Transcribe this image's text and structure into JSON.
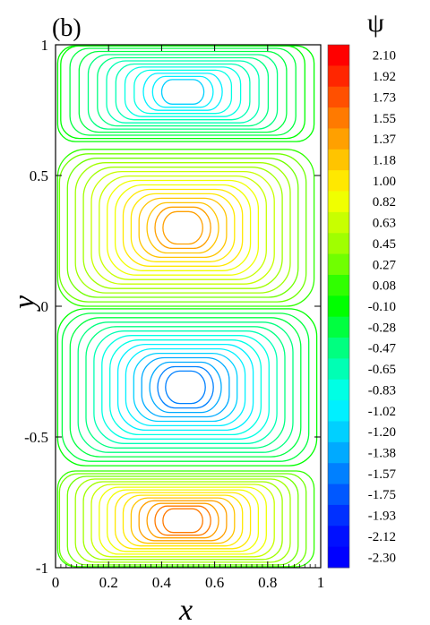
{
  "chart_data": {
    "type": "contour",
    "panel_label": "(b)",
    "xlabel": "x",
    "ylabel": "y",
    "xlim": [
      0,
      1
    ],
    "ylim": [
      -1,
      1
    ],
    "x_ticks": [
      "0",
      "0.2",
      "0.4",
      "0.6",
      "0.8",
      "1"
    ],
    "y_ticks": [
      "-1",
      "-0.5",
      "0",
      "0.5",
      "1"
    ],
    "colorbar_title": "ψ",
    "colorbar_levels": [
      "2.10",
      "1.92",
      "1.73",
      "1.55",
      "1.37",
      "1.18",
      "1.00",
      "0.82",
      "0.63",
      "0.45",
      "0.27",
      "0.08",
      "-0.10",
      "-0.28",
      "-0.47",
      "-0.65",
      "-0.83",
      "-1.02",
      "-1.20",
      "-1.38",
      "-1.57",
      "-1.75",
      "-1.93",
      "-2.12",
      "-2.30"
    ],
    "colorbar_colors": [
      "#ff0000",
      "#ff2600",
      "#ff5000",
      "#ff7a00",
      "#ffa000",
      "#ffc400",
      "#ffe800",
      "#f0ff00",
      "#c8ff00",
      "#a0ff00",
      "#70ff00",
      "#30ff00",
      "#00ff00",
      "#00ff40",
      "#00ff80",
      "#00ffb4",
      "#00ffe4",
      "#00f0ff",
      "#00d0ff",
      "#00aaff",
      "#0080ff",
      "#0058ff",
      "#0030ff",
      "#0010ff",
      "#0000ff"
    ],
    "vortices": [
      {
        "name": "top",
        "cx": 0.48,
        "cy": 0.82,
        "sign": -1,
        "peak": -1.2,
        "levels": 13
      },
      {
        "name": "upper-middle",
        "cx": 0.48,
        "cy": 0.3,
        "sign": 1,
        "peak": 1.55,
        "levels": 15
      },
      {
        "name": "lower-middle",
        "cx": 0.49,
        "cy": -0.31,
        "sign": -1,
        "peak": -1.75,
        "levels": 15
      },
      {
        "name": "bottom",
        "cx": 0.48,
        "cy": -0.82,
        "sign": 1,
        "peak": 1.73,
        "levels": 15
      }
    ]
  }
}
